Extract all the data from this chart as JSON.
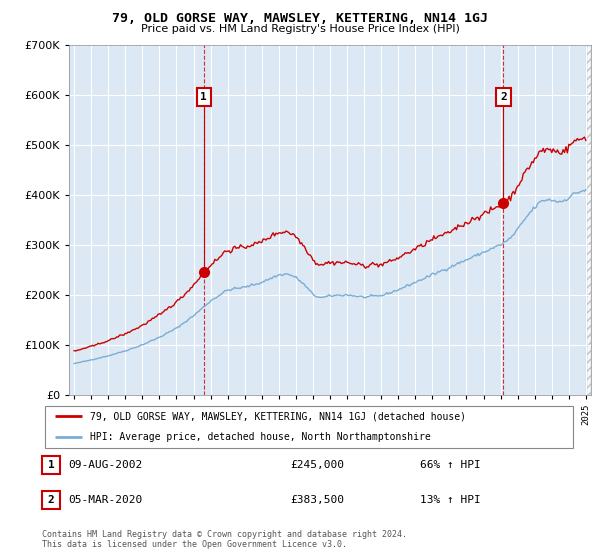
{
  "title": "79, OLD GORSE WAY, MAWSLEY, KETTERING, NN14 1GJ",
  "subtitle": "Price paid vs. HM Land Registry's House Price Index (HPI)",
  "legend_line1": "79, OLD GORSE WAY, MAWSLEY, KETTERING, NN14 1GJ (detached house)",
  "legend_line2": "HPI: Average price, detached house, North Northamptonshire",
  "footer": "Contains HM Land Registry data © Crown copyright and database right 2024.\nThis data is licensed under the Open Government Licence v3.0.",
  "sale1_date": "09-AUG-2002",
  "sale1_price": "£245,000",
  "sale1_hpi": "66% ↑ HPI",
  "sale2_date": "05-MAR-2020",
  "sale2_price": "£383,500",
  "sale2_hpi": "13% ↑ HPI",
  "house_color": "#cc0000",
  "hpi_color": "#7aadd4",
  "sale1_x": 2002.6,
  "sale1_y": 245000,
  "sale2_x": 2020.17,
  "sale2_y": 383500,
  "ylim": [
    0,
    700000
  ],
  "yticks": [
    0,
    100000,
    200000,
    300000,
    400000,
    500000,
    600000,
    700000
  ],
  "xlim_start": 1994.7,
  "xlim_end": 2025.3,
  "background_color": "#ffffff",
  "plot_bg_color": "#dce9f5"
}
